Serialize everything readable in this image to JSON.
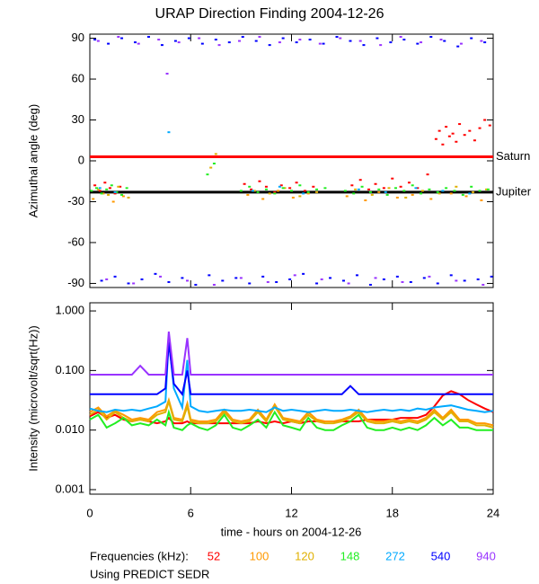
{
  "chart_data": [
    {
      "type": "scatter",
      "title": "URAP Direction Finding  2004-12-26",
      "ylabel": "Azimuthal angle (deg)",
      "xlim": [
        0,
        24
      ],
      "xticks": [
        0,
        6,
        12,
        18,
        24
      ],
      "ylim": [
        -93,
        93
      ],
      "yticks": [
        -90,
        -60,
        -30,
        0,
        30,
        60,
        90
      ],
      "ref_lines": [
        {
          "label": "Saturn",
          "value": 3,
          "color": "#ff0000"
        },
        {
          "label": "Jupiter",
          "value": -23,
          "color": "#000000"
        }
      ],
      "series": [
        {
          "color": "#ff0000",
          "x": [
            0.3,
            0.6,
            0.9,
            1.2,
            1.5,
            1.8,
            9.2,
            9.6,
            10.1,
            10.5,
            11.0,
            11.4,
            11.9,
            12.3,
            12.8,
            13.3,
            15.6,
            16.1,
            16.6,
            17.0,
            17.5,
            18.0,
            18.5,
            19.0,
            19.5,
            20.1,
            20.6,
            20.8,
            21.0,
            21.2,
            21.4,
            21.6,
            21.8,
            22.0,
            22.3,
            22.6,
            22.9,
            23.2,
            23.5,
            23.8
          ],
          "values": [
            -18,
            -22,
            -16,
            -20,
            -24,
            -19,
            -17,
            -21,
            -15,
            -19,
            -23,
            -18,
            -20,
            -16,
            -22,
            -19,
            -18,
            -14,
            -21,
            -17,
            -20,
            -13,
            -19,
            -16,
            -20,
            -10,
            16,
            22,
            12,
            25,
            18,
            20,
            14,
            27,
            19,
            22,
            15,
            24,
            30,
            26
          ]
        },
        {
          "color": "#ff9900",
          "x": [
            0.2,
            0.8,
            1.4,
            2.0,
            9.4,
            10.3,
            11.2,
            12.1,
            13.0,
            15.3,
            16.4,
            17.2,
            18.3,
            19.2,
            20.3,
            21.5,
            22.4,
            23.3
          ],
          "values": [
            -28,
            -24,
            -30,
            -26,
            -25,
            -28,
            -22,
            -27,
            -24,
            -26,
            -29,
            -23,
            -27,
            -25,
            -28,
            -24,
            -26,
            -29
          ]
        },
        {
          "color": "#e0b000",
          "x": [
            0.5,
            1.1,
            1.7,
            2.3,
            7.2,
            7.5,
            9.8,
            10.7,
            11.6,
            12.5,
            13.5,
            15.8,
            16.8,
            17.8,
            18.8,
            19.8,
            20.8,
            21.8,
            22.8,
            23.6
          ],
          "values": [
            -21,
            -25,
            -19,
            -27,
            -5,
            5,
            -22,
            -24,
            -20,
            -26,
            -23,
            -21,
            -25,
            -20,
            -27,
            -22,
            -24,
            -19,
            -23,
            -21
          ]
        },
        {
          "color": "#22ee22",
          "x": [
            0.1,
            0.4,
            0.7,
            1.0,
            1.3,
            1.6,
            1.9,
            2.2,
            7.0,
            7.4,
            9.0,
            9.5,
            10.0,
            10.5,
            11.0,
            11.5,
            12.0,
            12.5,
            13.0,
            13.5,
            14.0,
            15.2,
            15.7,
            16.2,
            16.7,
            17.2,
            17.7,
            18.2,
            18.7,
            19.2,
            19.7,
            20.2,
            20.7,
            21.2,
            21.7,
            22.2,
            22.7,
            23.2,
            23.7
          ],
          "values": [
            -22,
            -20,
            -24,
            -21,
            -18,
            -23,
            -25,
            -20,
            -10,
            -2,
            -22,
            -19,
            -23,
            -21,
            -24,
            -20,
            -22,
            -18,
            -23,
            -21,
            -20,
            -22,
            -24,
            -19,
            -23,
            -21,
            -25,
            -20,
            -22,
            -18,
            -24,
            -21,
            -23,
            -20,
            -22,
            -25,
            -19,
            -22,
            -21
          ]
        },
        {
          "color": "#00aaff",
          "x": [
            0.6,
            1.5,
            4.7,
            9.7,
            11.3,
            12.7,
            16.0,
            17.6,
            19.4,
            21.0,
            22.6
          ],
          "values": [
            -20,
            -23,
            21,
            -22,
            -19,
            -24,
            -21,
            -23,
            -20,
            -22,
            -24
          ]
        },
        {
          "color": "#0000ff",
          "x": [
            0.3,
            1.1,
            1.9,
            2.7,
            3.5,
            4.3,
            5.1,
            5.9,
            6.7,
            7.5,
            8.3,
            9.1,
            9.9,
            10.7,
            11.5,
            12.3,
            13.1,
            13.9,
            14.7,
            15.5,
            16.3,
            17.1,
            17.9,
            18.7,
            19.5,
            20.3,
            21.1,
            21.9,
            22.7,
            23.5,
            0.7,
            1.5,
            2.3,
            3.1,
            3.9,
            4.7,
            5.5,
            6.3,
            7.1,
            7.9,
            8.7,
            9.5,
            10.3,
            11.1,
            11.9,
            12.7,
            13.5,
            14.3,
            15.1,
            15.9,
            16.7,
            17.5,
            18.3,
            19.1,
            19.9,
            20.7,
            21.5,
            22.3,
            23.1,
            23.9
          ],
          "values": [
            89,
            86,
            90,
            87,
            91,
            85,
            88,
            90,
            86,
            89,
            87,
            91,
            88,
            85,
            90,
            87,
            89,
            86,
            91,
            88,
            85,
            90,
            87,
            89,
            86,
            91,
            88,
            84,
            90,
            87,
            -88,
            -85,
            -90,
            -87,
            -83,
            -89,
            -86,
            -91,
            -84,
            -88,
            -86,
            -90,
            -85,
            -89,
            -87,
            -83,
            -90,
            -86,
            -88,
            -84,
            -91,
            -87,
            -85,
            -89,
            -86,
            -90,
            -84,
            -88,
            -87,
            -85
          ]
        },
        {
          "color": "#9933ff",
          "x": [
            0.5,
            1.7,
            2.9,
            4.1,
            4.6,
            5.3,
            6.5,
            7.7,
            8.9,
            10.1,
            11.3,
            12.5,
            13.7,
            14.9,
            16.1,
            17.3,
            18.5,
            19.7,
            20.9,
            22.1,
            23.3,
            1.0,
            2.6,
            4.2,
            5.8,
            7.4,
            9.0,
            10.6,
            12.2,
            13.8,
            15.4,
            17.0,
            18.6,
            20.2,
            21.8,
            23.4
          ],
          "values": [
            88,
            91,
            86,
            89,
            64,
            87,
            90,
            85,
            88,
            91,
            87,
            89,
            86,
            90,
            88,
            85,
            91,
            87,
            89,
            86,
            88,
            -87,
            -90,
            -85,
            -88,
            -91,
            -86,
            -89,
            -84,
            -87,
            -90,
            -86,
            -89,
            -85,
            -88,
            -91
          ]
        }
      ]
    },
    {
      "type": "line",
      "ylabel": "Intensity (microvolt/sqrt(Hz))",
      "xlabel": "time - hours on 2004-12-26",
      "log_scale": true,
      "xlim": [
        0,
        24
      ],
      "xticks": [
        0,
        6,
        12,
        18,
        24
      ],
      "ylim": [
        0.00084,
        1.37
      ],
      "yticks": [
        {
          "value": 0.001,
          "label": "0.001"
        },
        {
          "value": 0.01,
          "label": "0.010"
        },
        {
          "value": 0.1,
          "label": "0.100"
        },
        {
          "value": 1,
          "label": "1.000"
        }
      ],
      "legend_title": "Frequencies (kHz):",
      "note": "Using PREDICT SEDR",
      "x": [
        0,
        0.5,
        1,
        1.5,
        2,
        2.5,
        3,
        3.5,
        4,
        4.5,
        4.7,
        5,
        5.5,
        5.8,
        6,
        6.5,
        7,
        7.5,
        8,
        8.5,
        9,
        9.5,
        10,
        10.5,
        11,
        11.5,
        12,
        12.5,
        13,
        13.5,
        14,
        14.5,
        15,
        15.5,
        16,
        16.5,
        17,
        17.5,
        18,
        18.5,
        19,
        19.5,
        20,
        20.5,
        21,
        21.5,
        22,
        22.5,
        23,
        23.5,
        24
      ],
      "series": [
        {
          "name": "52",
          "color": "#ff0000",
          "values": [
            0.017,
            0.02,
            0.016,
            0.018,
            0.015,
            0.014,
            0.015,
            0.014,
            0.013,
            0.014,
            0.016,
            0.013,
            0.013,
            0.014,
            0.013,
            0.013,
            0.013,
            0.013,
            0.013,
            0.013,
            0.013,
            0.013,
            0.014,
            0.013,
            0.014,
            0.013,
            0.014,
            0.013,
            0.014,
            0.014,
            0.014,
            0.014,
            0.014,
            0.014,
            0.014,
            0.015,
            0.015,
            0.015,
            0.015,
            0.016,
            0.016,
            0.016,
            0.018,
            0.025,
            0.038,
            0.045,
            0.04,
            0.032,
            0.027,
            0.023,
            0.02
          ]
        },
        {
          "name": "100",
          "color": "#ff9900",
          "values": [
            0.02,
            0.024,
            0.017,
            0.021,
            0.018,
            0.015,
            0.016,
            0.015,
            0.02,
            0.022,
            0.032,
            0.016,
            0.015,
            0.028,
            0.015,
            0.014,
            0.014,
            0.015,
            0.022,
            0.015,
            0.014,
            0.015,
            0.022,
            0.015,
            0.027,
            0.016,
            0.015,
            0.014,
            0.02,
            0.015,
            0.014,
            0.014,
            0.015,
            0.017,
            0.022,
            0.015,
            0.014,
            0.014,
            0.015,
            0.014,
            0.015,
            0.014,
            0.016,
            0.022,
            0.016,
            0.022,
            0.015,
            0.015,
            0.013,
            0.013,
            0.012
          ]
        },
        {
          "name": "120",
          "color": "#e0b000",
          "values": [
            0.018,
            0.022,
            0.015,
            0.02,
            0.016,
            0.014,
            0.015,
            0.014,
            0.018,
            0.02,
            0.03,
            0.015,
            0.014,
            0.025,
            0.014,
            0.013,
            0.013,
            0.014,
            0.02,
            0.014,
            0.013,
            0.014,
            0.02,
            0.014,
            0.025,
            0.015,
            0.014,
            0.013,
            0.018,
            0.014,
            0.013,
            0.013,
            0.014,
            0.016,
            0.02,
            0.014,
            0.013,
            0.013,
            0.014,
            0.013,
            0.014,
            0.013,
            0.015,
            0.02,
            0.015,
            0.02,
            0.014,
            0.014,
            0.012,
            0.012,
            0.011
          ]
        },
        {
          "name": "148",
          "color": "#22ee22",
          "values": [
            0.015,
            0.018,
            0.011,
            0.013,
            0.016,
            0.012,
            0.013,
            0.012,
            0.015,
            0.012,
            0.02,
            0.011,
            0.01,
            0.012,
            0.013,
            0.011,
            0.01,
            0.012,
            0.018,
            0.011,
            0.01,
            0.012,
            0.015,
            0.011,
            0.02,
            0.012,
            0.011,
            0.01,
            0.016,
            0.011,
            0.01,
            0.01,
            0.012,
            0.014,
            0.018,
            0.011,
            0.01,
            0.01,
            0.011,
            0.01,
            0.011,
            0.01,
            0.012,
            0.016,
            0.012,
            0.015,
            0.011,
            0.011,
            0.01,
            0.01,
            0.01
          ]
        },
        {
          "name": "272",
          "color": "#00aaff",
          "values": [
            0.023,
            0.021,
            0.02,
            0.022,
            0.021,
            0.022,
            0.021,
            0.023,
            0.025,
            0.03,
            0.35,
            0.05,
            0.024,
            0.15,
            0.025,
            0.021,
            0.02,
            0.021,
            0.022,
            0.021,
            0.021,
            0.022,
            0.021,
            0.02,
            0.024,
            0.021,
            0.022,
            0.021,
            0.02,
            0.021,
            0.022,
            0.021,
            0.021,
            0.022,
            0.021,
            0.02,
            0.021,
            0.022,
            0.021,
            0.022,
            0.021,
            0.023,
            0.022,
            0.024,
            0.025,
            0.026,
            0.024,
            0.022,
            0.021,
            0.02,
            0.021
          ]
        },
        {
          "name": "540",
          "color": "#0000ff",
          "values": [
            0.04,
            0.04,
            0.04,
            0.04,
            0.04,
            0.04,
            0.04,
            0.04,
            0.04,
            0.05,
            0.3,
            0.06,
            0.04,
            0.1,
            0.04,
            0.04,
            0.04,
            0.04,
            0.04,
            0.04,
            0.04,
            0.04,
            0.04,
            0.04,
            0.04,
            0.04,
            0.04,
            0.04,
            0.04,
            0.04,
            0.04,
            0.04,
            0.04,
            0.055,
            0.04,
            0.04,
            0.04,
            0.04,
            0.04,
            0.04,
            0.04,
            0.04,
            0.04,
            0.04,
            0.04,
            0.04,
            0.04,
            0.04,
            0.04,
            0.04,
            0.04
          ]
        },
        {
          "name": "940",
          "color": "#9933ff",
          "values": [
            0.085,
            0.085,
            0.085,
            0.085,
            0.085,
            0.085,
            0.12,
            0.085,
            0.085,
            0.085,
            0.45,
            0.085,
            0.085,
            0.35,
            0.085,
            0.085,
            0.085,
            0.085,
            0.085,
            0.085,
            0.085,
            0.085,
            0.085,
            0.085,
            0.085,
            0.085,
            0.085,
            0.085,
            0.085,
            0.085,
            0.085,
            0.085,
            0.085,
            0.085,
            0.085,
            0.085,
            0.085,
            0.085,
            0.085,
            0.085,
            0.085,
            0.085,
            0.085,
            0.085,
            0.085,
            0.085,
            0.085,
            0.085,
            0.085,
            0.085,
            0.085
          ]
        }
      ]
    }
  ]
}
